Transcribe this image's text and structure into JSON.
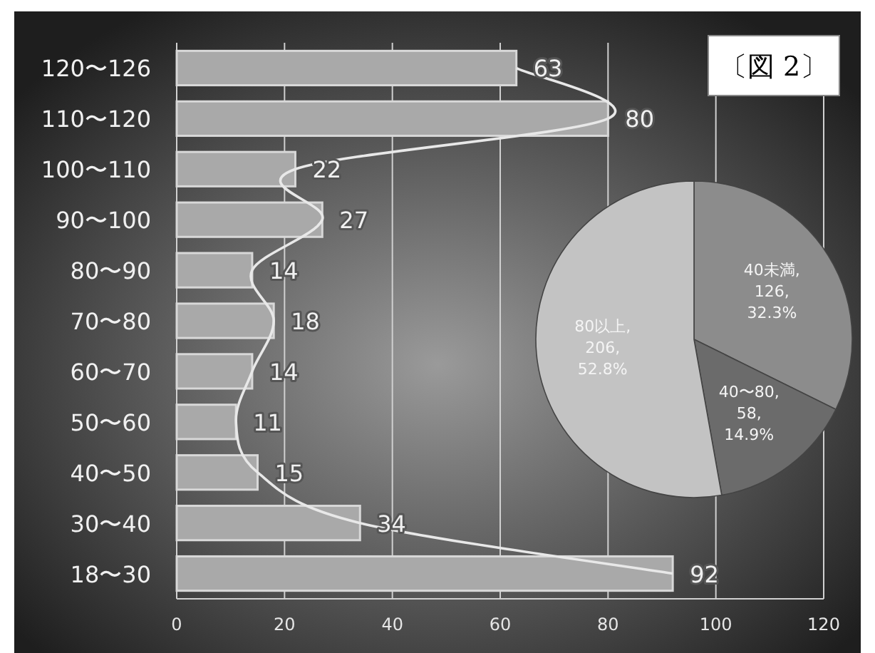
{
  "chart_data": [
    {
      "type": "bar",
      "orientation": "horizontal",
      "annotations": [
        "〔図 2〕"
      ],
      "categories": [
        "120〜126",
        "110〜120",
        "100〜110",
        "90〜100",
        "80〜90",
        "70〜80",
        "60〜70",
        "50〜60",
        "40〜50",
        "30〜40",
        "18〜30"
      ],
      "series": [
        {
          "type": "bar",
          "color": "#a9a9a9",
          "values": [
            63,
            80,
            22,
            27,
            14,
            18,
            14,
            11,
            15,
            34,
            92
          ],
          "value_labels": [
            "63",
            "80",
            "22",
            "27",
            "14",
            "18",
            "14",
            "11",
            "15",
            "34",
            "92"
          ]
        },
        {
          "type": "line",
          "color": "#e8e8e8",
          "values": [
            63,
            80,
            22,
            27,
            14,
            18,
            14,
            11,
            15,
            34,
            92
          ]
        }
      ],
      "xlim": [
        0,
        120
      ],
      "xticks": [
        0,
        20,
        40,
        60,
        80,
        100,
        120
      ],
      "grid": "x"
    },
    {
      "type": "pie",
      "values": [
        32.3,
        14.9,
        52.8
      ],
      "colors": [
        "#8c8c8c",
        "#6b6b6b",
        "#c3c3c3"
      ],
      "value_labels": [
        "40未満, 126, 32.3%",
        "40〜80, 58, 14.9%",
        "80以上, 206, 52.8%"
      ]
    }
  ]
}
